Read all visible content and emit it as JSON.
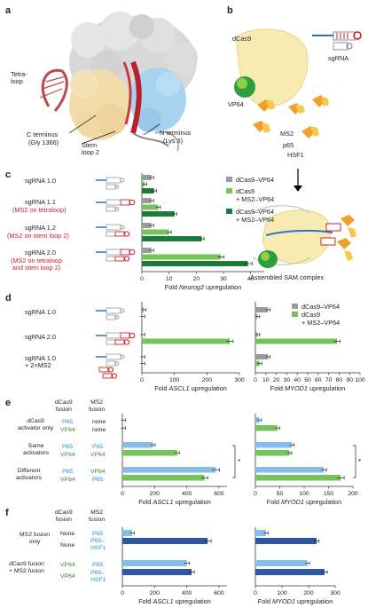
{
  "panels": {
    "a": "a",
    "b": "b",
    "c": "c",
    "d": "d",
    "e": "e",
    "f": "f"
  },
  "panel_a": {
    "tetraloop": "Tetra-\nloop",
    "c_terminus": "C terminus",
    "c_terminus_res": "(Gly 1366)",
    "stem_loop": "Stem\nloop 2",
    "n_terminus": "N terminus",
    "n_terminus_res": "(Lys 3)"
  },
  "panel_b": {
    "dcas9": "dCas9",
    "vp64": "VP64",
    "sgrna": "sgRNA",
    "ms2": "MS2",
    "p65": "p65",
    "hsf1": "HSF1",
    "assembled": "Assembled SAM complex"
  },
  "panel_c": {
    "rows": [
      {
        "name": "sgRNA 1.0",
        "sub": ""
      },
      {
        "name": "sgRNA 1.1",
        "sub": "(MS2 on tetraloop)"
      },
      {
        "name": "sgRNA 1.2",
        "sub": "(MS2 on stem loop 2)"
      },
      {
        "name": "sgRNA 2.0",
        "sub": "(MS2 on tetraloop\nand stem loop 2)"
      }
    ],
    "legend": [
      "dCas9–VP64",
      "dCas9\n+ MS2–VP64",
      "dCas9–VP64\n+ MS2–VP64"
    ],
    "xlabel": "Fold Neurog2 upregulation"
  },
  "panel_d": {
    "rows": [
      "sgRNA 1.0",
      "sgRNA 2.0",
      "sgRNA 1.0\n+ 2×MS2"
    ],
    "legend": [
      "dCas9–VP64",
      "dCas9\n+ MS2–VP64"
    ],
    "xlabel_left": "Fold ASCL1 upregulation",
    "xlabel_right": "Fold MYOD1 upregulation"
  },
  "panel_e": {
    "header_dcas9": "dCas9\nfusion",
    "header_ms2": "MS2\nfusion",
    "groups": [
      {
        "label": "dCas9\nactivator only",
        "rows": [
          [
            "P65",
            "none"
          ],
          [
            "VP64",
            "none"
          ]
        ]
      },
      {
        "label": "Same\nactivators",
        "rows": [
          [
            "P65",
            "P65"
          ],
          [
            "VP64",
            "VP64"
          ]
        ]
      },
      {
        "label": "Different\nactivators",
        "rows": [
          [
            "P65",
            "VP64"
          ],
          [
            "VP64",
            "P65"
          ]
        ]
      }
    ],
    "star": "*",
    "xlabel_left": "Fold ASCL1 upregulation",
    "xlabel_right": "Fold MYOD1 upregulation"
  },
  "panel_f": {
    "header_dcas9": "dCas9\nfusion",
    "header_ms2": "MS2\nfusion",
    "groups": [
      {
        "label": "MS2 fusion\nonly",
        "rows": [
          [
            "None",
            "P65"
          ],
          [
            "None",
            "P65–\nHSF1"
          ]
        ]
      },
      {
        "label": "dCas9 fusion\n+ MS2 fusion",
        "rows": [
          [
            "VP64",
            "P65"
          ],
          [
            "VP64",
            "P65–\nHSF1"
          ]
        ]
      }
    ],
    "xlabel_left": "Fold ASCL1 upregulation",
    "xlabel_right": "Fold MYOD1 upregulation"
  },
  "colors": {
    "gray": "#9b9b9b",
    "light_green": "#76c35a",
    "dark_green": "#1e7a3a",
    "light_blue": "#86bde6",
    "dark_blue": "#2f56a3",
    "red": "#cc1f28"
  },
  "chart_data": [
    {
      "id": "c",
      "type": "bar",
      "categories": [
        "sgRNA 1.0",
        "sgRNA 1.1",
        "sgRNA 1.2",
        "sgRNA 2.0"
      ],
      "series": [
        {
          "name": "dCas9–VP64",
          "values": [
            3.5,
            3.5,
            3.5,
            3.5
          ]
        },
        {
          "name": "dCas9 + MS2–VP64",
          "values": [
            1,
            6,
            10,
            29
          ]
        },
        {
          "name": "dCas9–VP64 + MS2–VP64",
          "values": [
            4.5,
            12,
            22,
            39
          ]
        }
      ],
      "xlim": [
        0,
        45
      ],
      "ticks": [
        0,
        10,
        20,
        30,
        40
      ]
    },
    {
      "id": "d-ascl1",
      "type": "bar",
      "categories": [
        "sgRNA 1.0",
        "sgRNA 2.0",
        "sgRNA 1.0 + 2×MS2"
      ],
      "series": [
        {
          "name": "dCas9–VP64",
          "values": [
            5,
            2,
            2
          ]
        },
        {
          "name": "dCas9 + MS2–VP64",
          "values": [
            2,
            270,
            2
          ]
        }
      ],
      "xlim": [
        0,
        300
      ],
      "ticks": [
        0,
        100,
        200,
        300
      ]
    },
    {
      "id": "d-myod1",
      "type": "bar",
      "categories": [
        "sgRNA 1.0",
        "sgRNA 2.0",
        "sgRNA 1.0 + 2×MS2"
      ],
      "series": [
        {
          "name": "dCas9–VP64",
          "values": [
            12,
            2,
            12
          ]
        },
        {
          "name": "dCas9 + MS2–VP64",
          "values": [
            2,
            78,
            4
          ]
        }
      ],
      "xlim": [
        0,
        100
      ],
      "ticks": [
        0,
        10,
        20,
        30,
        40,
        50,
        60,
        70,
        80,
        90,
        100
      ]
    },
    {
      "id": "e-ascl1",
      "type": "bar",
      "categories": [
        "P65/none",
        "VP64/none",
        "P65/P65",
        "VP64/VP64",
        "P65/VP64",
        "VP64/P65"
      ],
      "values": [
        5,
        5,
        190,
        340,
        580,
        510
      ],
      "xlim": [
        0,
        650
      ],
      "ticks": [
        0,
        200,
        400,
        600
      ]
    },
    {
      "id": "e-myod1",
      "type": "bar",
      "categories": [
        "P65/none",
        "VP64/none",
        "P65/P65",
        "VP64/VP64",
        "P65/VP64",
        "VP64/P65"
      ],
      "values": [
        8,
        45,
        75,
        70,
        140,
        175
      ],
      "xlim": [
        0,
        200
      ],
      "ticks": [
        0,
        50,
        100,
        150,
        200
      ]
    },
    {
      "id": "f-ascl1",
      "type": "bar",
      "categories": [
        "None/P65",
        "None/P65–HSF1",
        "VP64/P65",
        "VP64/P65–HSF1"
      ],
      "values": [
        60,
        530,
        400,
        430
      ],
      "xlim": [
        0,
        650
      ],
      "ticks": [
        0,
        200,
        400,
        600
      ]
    },
    {
      "id": "f-myod1",
      "type": "bar",
      "categories": [
        "None/P65",
        "None/P65–HSF1",
        "VP64/P65",
        "VP64/P65–HSF1"
      ],
      "values": [
        40,
        230,
        195,
        260
      ],
      "xlim": [
        0,
        300
      ],
      "ticks": [
        0,
        100,
        200,
        300
      ]
    }
  ]
}
